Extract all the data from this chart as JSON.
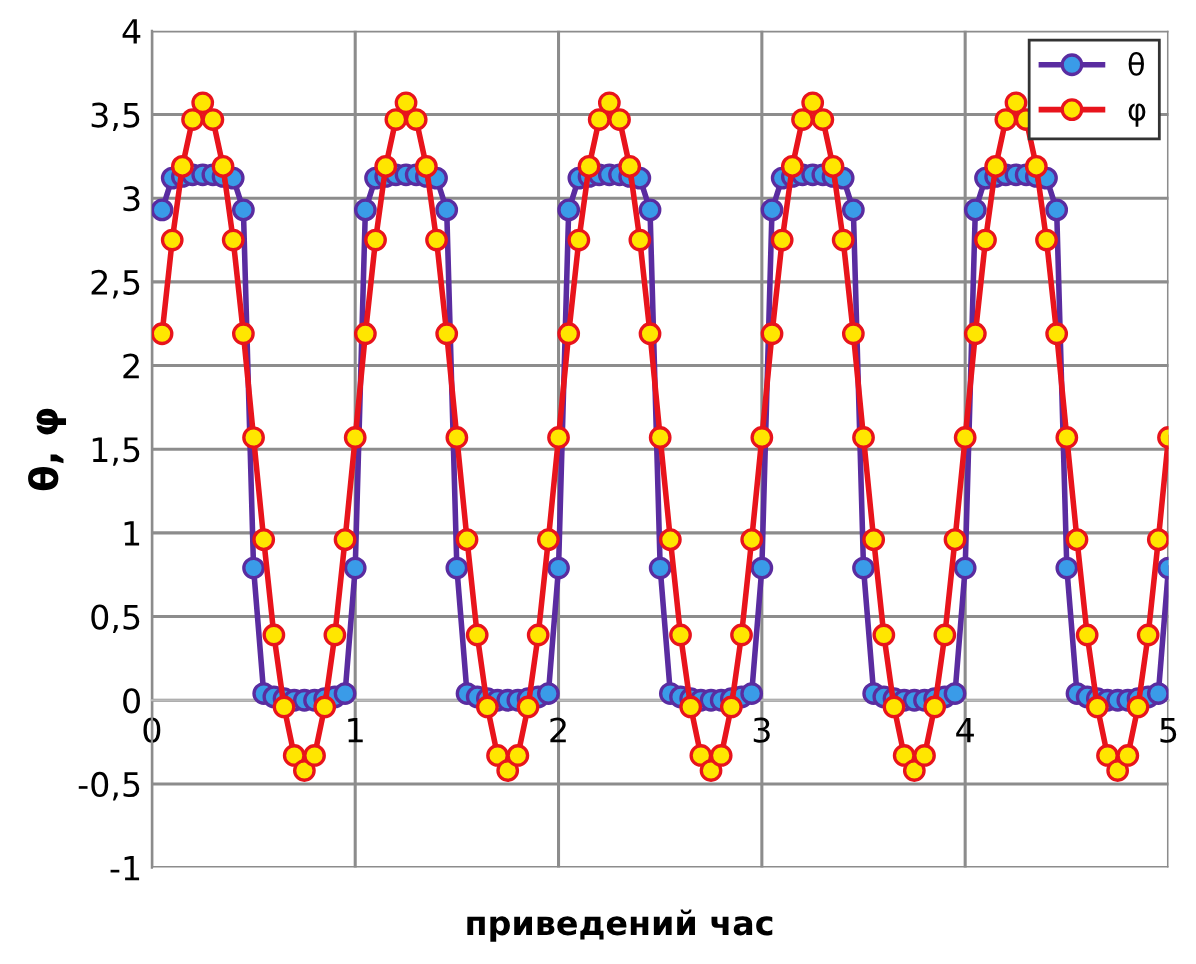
{
  "chart_data": {
    "type": "line",
    "xlabel": "приведений час",
    "ylabel": "θ, φ",
    "x": [
      0.05,
      0.1,
      0.15,
      0.2,
      0.25,
      0.3,
      0.35,
      0.4,
      0.45,
      0.5,
      0.55,
      0.6,
      0.65,
      0.7,
      0.75,
      0.8,
      0.85,
      0.9,
      0.95,
      1.0,
      1.05,
      1.1,
      1.15,
      1.2,
      1.25,
      1.3,
      1.35,
      1.4,
      1.45,
      1.5,
      1.55,
      1.6,
      1.65,
      1.7,
      1.75,
      1.8,
      1.85,
      1.9,
      1.95,
      2.0,
      2.05,
      2.1,
      2.15,
      2.2,
      2.25,
      2.3,
      2.35,
      2.4,
      2.45,
      2.5,
      2.55,
      2.6,
      2.65,
      2.7,
      2.75,
      2.8,
      2.85,
      2.9,
      2.95,
      3.0,
      3.05,
      3.1,
      3.15,
      3.2,
      3.25,
      3.3,
      3.35,
      3.4,
      3.45,
      3.5,
      3.55,
      3.6,
      3.65,
      3.7,
      3.75,
      3.8,
      3.85,
      3.9,
      3.95,
      4.0,
      4.05,
      4.1,
      4.15,
      4.2,
      4.25,
      4.3,
      4.35,
      4.4,
      4.45,
      4.5,
      4.55,
      4.6,
      4.65,
      4.7,
      4.75,
      4.8,
      4.85,
      4.9,
      4.95,
      5.0
    ],
    "series": [
      {
        "name": "θ",
        "color": "#5a2ca0",
        "values": [
          2.93,
          3.12,
          3.13,
          3.14,
          3.14,
          3.14,
          3.13,
          3.12,
          2.93,
          0.79,
          0.04,
          0.02,
          0.01,
          0,
          0,
          0,
          0.01,
          0.02,
          0.04,
          0.79,
          2.93,
          3.12,
          3.13,
          3.14,
          3.14,
          3.14,
          3.13,
          3.12,
          2.93,
          0.79,
          0.04,
          0.02,
          0.01,
          0,
          0,
          0,
          0.01,
          0.02,
          0.04,
          0.79,
          2.93,
          3.12,
          3.13,
          3.14,
          3.14,
          3.14,
          3.13,
          3.12,
          2.93,
          0.79,
          0.04,
          0.02,
          0.01,
          0,
          0,
          0,
          0.01,
          0.02,
          0.04,
          0.79,
          2.93,
          3.12,
          3.13,
          3.14,
          3.14,
          3.14,
          3.13,
          3.12,
          2.93,
          0.79,
          0.04,
          0.02,
          0.01,
          0,
          0,
          0,
          0.01,
          0.02,
          0.04,
          0.79,
          2.93,
          3.12,
          3.13,
          3.14,
          3.14,
          3.14,
          3.13,
          3.12,
          2.93,
          0.79,
          0.04,
          0.02,
          0.01,
          0,
          0,
          0,
          0.01,
          0.02,
          0.04,
          0.79
        ]
      },
      {
        "name": "φ",
        "color": "#e8141c",
        "values": [
          2.19,
          2.75,
          3.19,
          3.47,
          3.57,
          3.47,
          3.19,
          2.75,
          2.19,
          1.57,
          0.96,
          0.39,
          -0.04,
          -0.33,
          -0.42,
          -0.33,
          -0.04,
          0.39,
          0.96,
          1.57,
          2.19,
          2.75,
          3.19,
          3.47,
          3.57,
          3.47,
          3.19,
          2.75,
          2.19,
          1.57,
          0.96,
          0.39,
          -0.04,
          -0.33,
          -0.42,
          -0.33,
          -0.04,
          0.39,
          0.96,
          1.57,
          2.19,
          2.75,
          3.19,
          3.47,
          3.57,
          3.47,
          3.19,
          2.75,
          2.19,
          1.57,
          0.96,
          0.39,
          -0.04,
          -0.33,
          -0.42,
          -0.33,
          -0.04,
          0.39,
          0.96,
          1.57,
          2.19,
          2.75,
          3.19,
          3.47,
          3.57,
          3.47,
          3.19,
          2.75,
          2.19,
          1.57,
          0.96,
          0.39,
          -0.04,
          -0.33,
          -0.42,
          -0.33,
          -0.04,
          0.39,
          0.96,
          1.57,
          2.19,
          2.75,
          3.19,
          3.47,
          3.57,
          3.47,
          3.19,
          2.75,
          2.19,
          1.57,
          0.96,
          0.39,
          -0.04,
          -0.33,
          -0.42,
          -0.33,
          -0.04,
          0.39,
          0.96,
          1.57
        ]
      }
    ],
    "xlim": [
      0,
      5
    ],
    "xticks": [
      0,
      1,
      2,
      3,
      4,
      5
    ],
    "ylim": [
      -1,
      4
    ],
    "yticks": [
      {
        "value": -1,
        "label": "-1"
      },
      {
        "value": -0.5,
        "label": "-0,5"
      },
      0,
      {
        "value": 0.5,
        "label": "0,5"
      },
      1,
      {
        "value": 1.5,
        "label": "1,5"
      },
      2,
      {
        "value": 2.5,
        "label": "2,5"
      },
      3,
      {
        "value": 3.5,
        "label": "3,5"
      },
      4
    ],
    "grid": true,
    "legend": "top right",
    "marker": "circle",
    "line_style": "solid"
  }
}
